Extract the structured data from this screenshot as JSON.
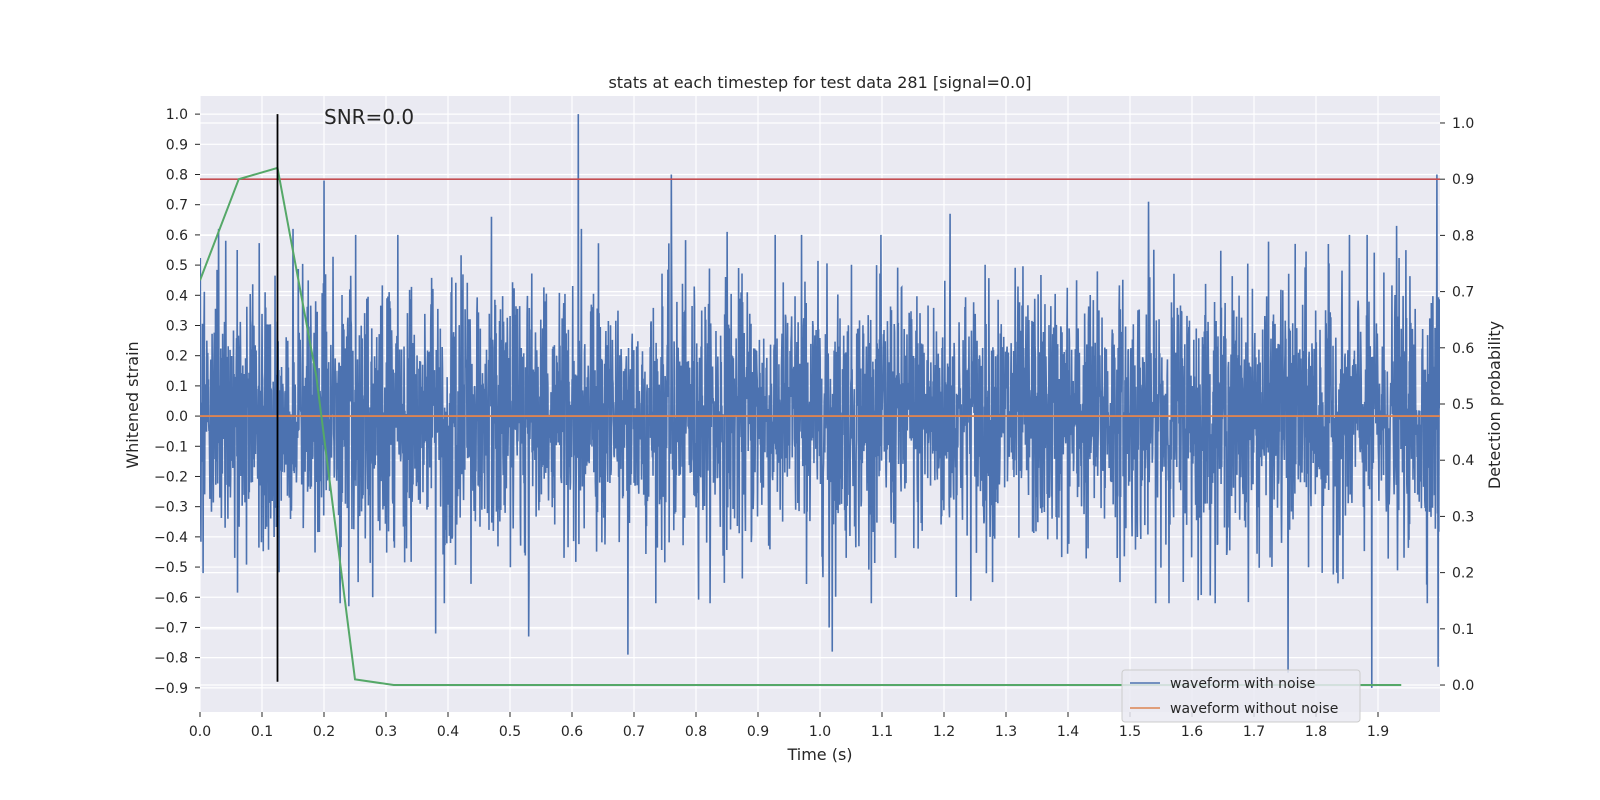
{
  "chart_data": {
    "type": "line",
    "title": "stats at each timestep for test data 281 [signal=0.0]",
    "xlabel": "Time (s)",
    "ylabel": "Whitened strain",
    "y2label": "Detection probability",
    "xlim": [
      0.0,
      2.0
    ],
    "ylim": [
      -0.98,
      1.06
    ],
    "y2lim": [
      -0.048,
      1.048
    ],
    "xticks": [
      "0.0",
      "0.1",
      "0.2",
      "0.3",
      "0.4",
      "0.5",
      "0.6",
      "0.7",
      "0.8",
      "0.9",
      "1.0",
      "1.1",
      "1.2",
      "1.3",
      "1.4",
      "1.5",
      "1.6",
      "1.7",
      "1.8",
      "1.9"
    ],
    "yticks": [
      "1.0",
      "0.9",
      "0.8",
      "0.7",
      "0.6",
      "0.5",
      "0.4",
      "0.3",
      "0.2",
      "0.1",
      "0.0",
      "−0.1",
      "−0.2",
      "−0.3",
      "−0.4",
      "−0.5",
      "−0.6",
      "−0.7",
      "−0.8",
      "−0.9"
    ],
    "y2ticks": [
      "1.0",
      "0.9",
      "0.8",
      "0.7",
      "0.6",
      "0.5",
      "0.4",
      "0.3",
      "0.2",
      "0.1",
      "0.0"
    ],
    "grid": true,
    "annotation": "SNR=0.0",
    "legend_position": "lower-right",
    "threshold": {
      "name": "threshold",
      "axis": "right",
      "value": 0.9
    },
    "marker_line": {
      "x": 0.125,
      "ymin": -0.88,
      "ymax": 1.0
    },
    "noise_model": {
      "samples": 4000,
      "std": 0.21,
      "seed": 281
    },
    "series": [
      {
        "name": "waveform with noise",
        "axis": "left",
        "color": "#4c72b0",
        "spikes": [
          {
            "x": 0.0,
            "y": 0.47
          },
          {
            "x": 0.005,
            "y": -0.52
          },
          {
            "x": 0.03,
            "y": 0.62
          },
          {
            "x": 0.06,
            "y": 0.55
          },
          {
            "x": 0.15,
            "y": 0.62
          },
          {
            "x": 0.2,
            "y": 0.78
          },
          {
            "x": 0.24,
            "y": -0.63
          },
          {
            "x": 0.255,
            "y": -0.55
          },
          {
            "x": 0.38,
            "y": -0.72
          },
          {
            "x": 0.47,
            "y": 0.66
          },
          {
            "x": 0.53,
            "y": -0.73
          },
          {
            "x": 0.61,
            "y": 1.0
          },
          {
            "x": 0.615,
            "y": 0.62
          },
          {
            "x": 0.69,
            "y": -0.79
          },
          {
            "x": 0.76,
            "y": 0.8
          },
          {
            "x": 0.85,
            "y": 0.61
          },
          {
            "x": 0.97,
            "y": 0.6
          },
          {
            "x": 1.02,
            "y": -0.78
          },
          {
            "x": 1.015,
            "y": -0.7
          },
          {
            "x": 1.21,
            "y": 0.67
          },
          {
            "x": 1.53,
            "y": 0.71
          },
          {
            "x": 1.61,
            "y": -0.61
          },
          {
            "x": 1.755,
            "y": -0.85
          },
          {
            "x": 1.89,
            "y": -0.9
          },
          {
            "x": 1.93,
            "y": 0.63
          },
          {
            "x": 1.995,
            "y": 0.8
          },
          {
            "x": 1.997,
            "y": -0.83
          }
        ]
      },
      {
        "name": "waveform without noise",
        "axis": "left",
        "color": "#dd8452",
        "x": [
          0.0,
          2.0
        ],
        "values": [
          0.0,
          0.0
        ]
      },
      {
        "name": "detection probability",
        "axis": "right",
        "color": "#55a868",
        "x": [
          0.0,
          0.0625,
          0.125,
          0.1875,
          0.25,
          0.3125,
          0.375,
          0.4375,
          0.5,
          0.5625,
          0.625,
          0.6875,
          0.75,
          0.8125,
          0.875,
          0.9375,
          1.0,
          1.0625,
          1.125,
          1.1875,
          1.25,
          1.3125,
          1.375,
          1.4375,
          1.5,
          1.5625,
          1.625,
          1.6875,
          1.75,
          1.8125,
          1.875,
          1.9375
        ],
        "values": [
          0.72,
          0.9,
          0.92,
          0.55,
          0.01,
          0.0,
          0.0,
          0.0,
          0.0,
          0.0,
          0.0,
          0.0,
          0.0,
          0.0,
          0.0,
          0.0,
          0.0,
          0.0,
          0.0,
          0.0,
          0.0,
          0.0,
          0.0,
          0.0,
          0.0,
          0.0,
          0.0,
          0.0,
          0.0,
          0.0,
          0.0,
          0.0
        ]
      }
    ],
    "threshold_color": "#c44e52",
    "marker_color": "#000000"
  }
}
